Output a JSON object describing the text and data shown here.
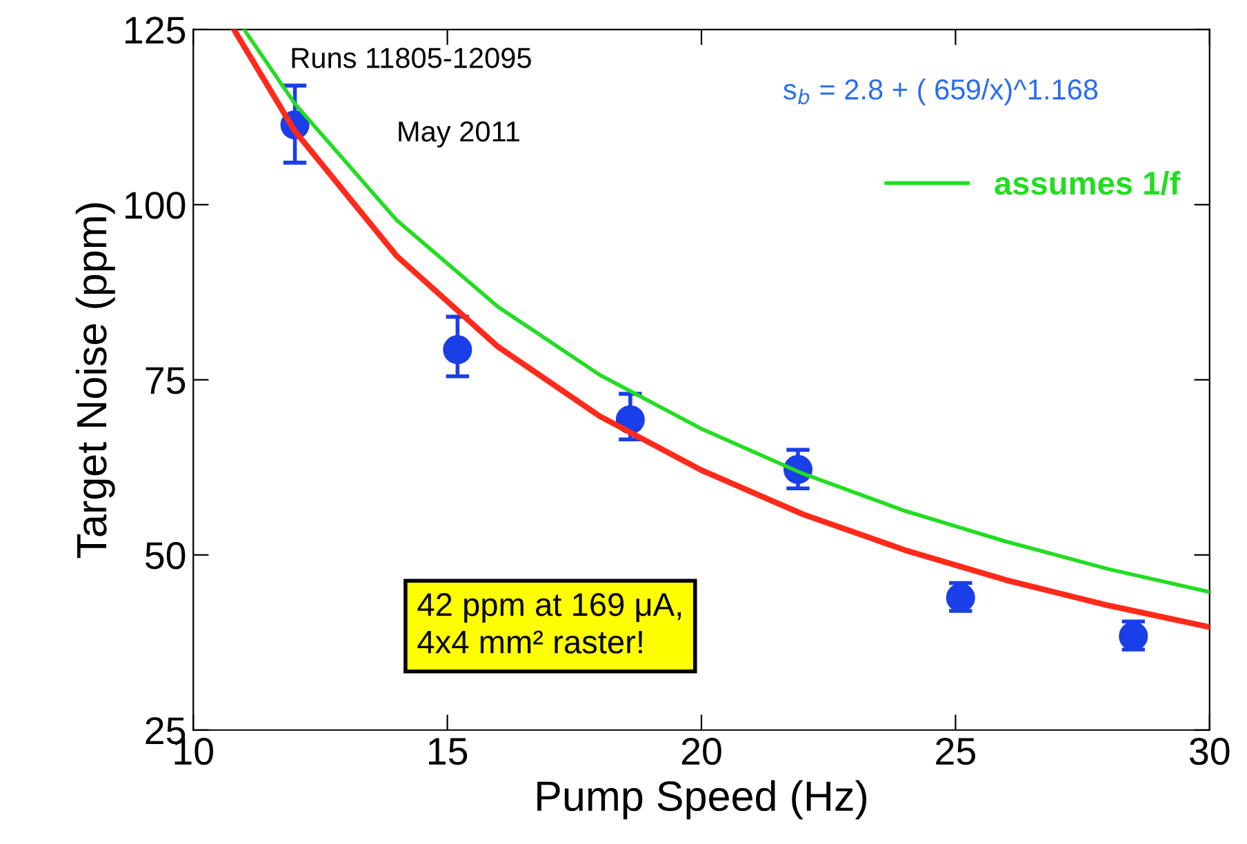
{
  "chart_data": {
    "type": "scatter",
    "xlabel": "Pump Speed (Hz)",
    "ylabel": "Target Noise (ppm)",
    "xlim": [
      10,
      30
    ],
    "ylim": [
      25,
      125
    ],
    "xticks": [
      10,
      15,
      20,
      25,
      30
    ],
    "yticks": [
      25,
      50,
      75,
      100,
      125
    ],
    "grid": false,
    "legend": "top right",
    "series": [
      {
        "type": "line",
        "color": "#ff2a1a",
        "x": [
          10.8,
          12,
          14,
          16,
          18,
          20,
          22,
          24,
          26,
          28,
          30
        ],
        "values": [
          125,
          110.5,
          92.7,
          79.7,
          69.8,
          62.1,
          55.8,
          50.7,
          46.4,
          42.8,
          39.7
        ]
      },
      {
        "type": "line",
        "name": "assumes 1/f",
        "color": "#22dd22",
        "x": [
          11,
          12,
          14,
          16,
          18,
          20,
          22,
          24,
          26,
          28,
          30
        ],
        "values": [
          125,
          114.4,
          97.8,
          85.4,
          75.7,
          68,
          61.6,
          56.3,
          51.9,
          48,
          44.7
        ]
      },
      {
        "color": "#1a3ee8",
        "marker": "circle",
        "x": [
          12.0,
          15.2,
          18.6,
          21.9,
          25.1,
          28.5
        ],
        "values": [
          111.4,
          79.3,
          69.3,
          62.2,
          43.9,
          38.4
        ],
        "errors": [
          [
            106,
            117
          ],
          [
            75.5,
            84
          ],
          [
            66.5,
            73
          ],
          [
            59.5,
            65
          ],
          [
            42,
            46
          ],
          [
            36.5,
            40.5
          ]
        ]
      }
    ],
    "annotations": [
      "Runs 11805-12095",
      "May 2011",
      "s$_{b}$ = 2.8 + ( 659/x)^1.168",
      "42 ppm at 169 μA,\n4x4 mm² raster!"
    ]
  }
}
